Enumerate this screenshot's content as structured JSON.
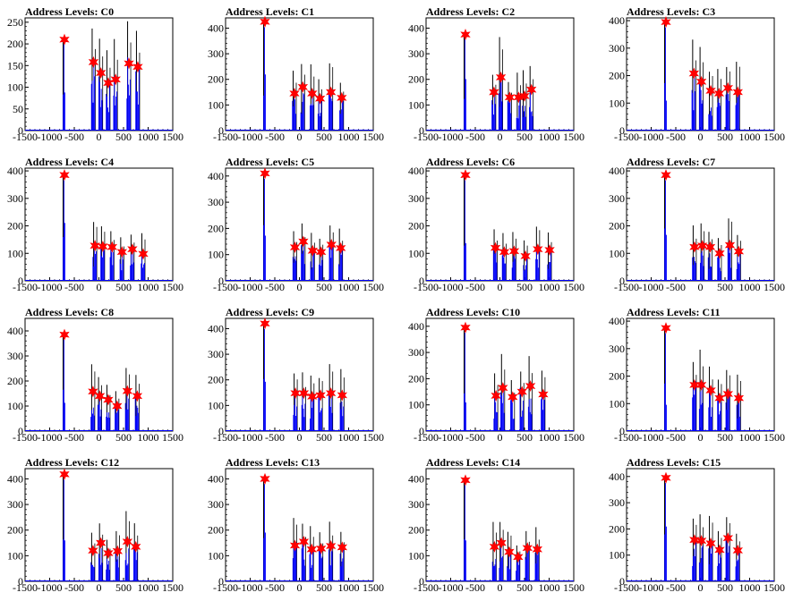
{
  "figure": {
    "x_ticks": [
      -1500,
      -1000,
      -500,
      0,
      500,
      1000,
      1500
    ],
    "xlim": [
      -1500,
      1500
    ],
    "line_color": "#0000ff",
    "spike_color": "#000000",
    "marker_color": "#ff0000"
  },
  "chart_data": [
    {
      "type": "bar",
      "title": "Address Levels: C0",
      "ylim": [
        0,
        260
      ],
      "y_ticks": [
        0,
        50,
        100,
        150,
        200,
        250
      ],
      "peaks": [
        {
          "x": -700,
          "y": 210
        },
        {
          "x": -110,
          "y": 158
        },
        {
          "x": 40,
          "y": 133
        },
        {
          "x": 190,
          "y": 110
        },
        {
          "x": 340,
          "y": 118
        },
        {
          "x": 610,
          "y": 155
        },
        {
          "x": 790,
          "y": 147
        }
      ]
    },
    {
      "type": "bar",
      "title": "Address Levels: C1",
      "ylim": [
        0,
        440
      ],
      "y_ticks": [
        0,
        100,
        200,
        300,
        400
      ],
      "peaks": [
        {
          "x": -700,
          "y": 425
        },
        {
          "x": -100,
          "y": 145
        },
        {
          "x": 70,
          "y": 170
        },
        {
          "x": 260,
          "y": 145
        },
        {
          "x": 420,
          "y": 125
        },
        {
          "x": 640,
          "y": 150
        },
        {
          "x": 860,
          "y": 128
        }
      ]
    },
    {
      "type": "bar",
      "title": "Address Levels: C2",
      "ylim": [
        0,
        440
      ],
      "y_ticks": [
        0,
        100,
        200,
        300,
        400
      ],
      "peaks": [
        {
          "x": -700,
          "y": 375
        },
        {
          "x": -120,
          "y": 150
        },
        {
          "x": 20,
          "y": 208
        },
        {
          "x": 200,
          "y": 130
        },
        {
          "x": 380,
          "y": 130
        },
        {
          "x": 500,
          "y": 135
        },
        {
          "x": 640,
          "y": 160
        }
      ]
    },
    {
      "type": "bar",
      "title": "Address Levels: C3",
      "ylim": [
        0,
        410
      ],
      "y_ticks": [
        0,
        100,
        200,
        300,
        400
      ],
      "peaks": [
        {
          "x": -700,
          "y": 395
        },
        {
          "x": -130,
          "y": 208
        },
        {
          "x": 20,
          "y": 178
        },
        {
          "x": 210,
          "y": 145
        },
        {
          "x": 380,
          "y": 135
        },
        {
          "x": 560,
          "y": 155
        },
        {
          "x": 760,
          "y": 140
        }
      ]
    },
    {
      "type": "bar",
      "title": "Address Levels: C4",
      "ylim": [
        0,
        410
      ],
      "y_ticks": [
        0,
        100,
        200,
        300,
        400
      ],
      "peaks": [
        {
          "x": -700,
          "y": 385
        },
        {
          "x": -80,
          "y": 128
        },
        {
          "x": 80,
          "y": 125
        },
        {
          "x": 270,
          "y": 123
        },
        {
          "x": 470,
          "y": 105
        },
        {
          "x": 680,
          "y": 115
        },
        {
          "x": 900,
          "y": 98
        }
      ]
    },
    {
      "type": "bar",
      "title": "Address Levels: C5",
      "ylim": [
        0,
        430
      ],
      "y_ticks": [
        0,
        100,
        200,
        300,
        400
      ],
      "peaks": [
        {
          "x": -700,
          "y": 410
        },
        {
          "x": -90,
          "y": 128
        },
        {
          "x": 80,
          "y": 150
        },
        {
          "x": 270,
          "y": 115
        },
        {
          "x": 440,
          "y": 110
        },
        {
          "x": 650,
          "y": 138
        },
        {
          "x": 840,
          "y": 125
        }
      ]
    },
    {
      "type": "bar",
      "title": "Address Levels: C6",
      "ylim": [
        0,
        410
      ],
      "y_ticks": [
        0,
        100,
        200,
        300,
        400
      ],
      "peaks": [
        {
          "x": -700,
          "y": 385
        },
        {
          "x": -90,
          "y": 120
        },
        {
          "x": 90,
          "y": 105
        },
        {
          "x": 290,
          "y": 108
        },
        {
          "x": 520,
          "y": 90
        },
        {
          "x": 770,
          "y": 115
        },
        {
          "x": 1010,
          "y": 112
        }
      ]
    },
    {
      "type": "bar",
      "title": "Address Levels: C7",
      "ylim": [
        0,
        410
      ],
      "y_ticks": [
        0,
        100,
        200,
        300,
        400
      ],
      "peaks": [
        {
          "x": -700,
          "y": 385
        },
        {
          "x": -120,
          "y": 123
        },
        {
          "x": 40,
          "y": 128
        },
        {
          "x": 200,
          "y": 123
        },
        {
          "x": 390,
          "y": 100
        },
        {
          "x": 600,
          "y": 130
        },
        {
          "x": 780,
          "y": 107
        }
      ]
    },
    {
      "type": "bar",
      "title": "Address Levels: C8",
      "ylim": [
        0,
        450
      ],
      "y_ticks": [
        0,
        100,
        200,
        300,
        400
      ],
      "peaks": [
        {
          "x": -700,
          "y": 385
        },
        {
          "x": -120,
          "y": 158
        },
        {
          "x": 20,
          "y": 140
        },
        {
          "x": 190,
          "y": 125
        },
        {
          "x": 370,
          "y": 100
        },
        {
          "x": 580,
          "y": 160
        },
        {
          "x": 780,
          "y": 140
        }
      ]
    },
    {
      "type": "bar",
      "title": "Address Levels: C9",
      "ylim": [
        0,
        440
      ],
      "y_ticks": [
        0,
        100,
        200,
        300,
        400
      ],
      "peaks": [
        {
          "x": -700,
          "y": 420
        },
        {
          "x": -80,
          "y": 148
        },
        {
          "x": 90,
          "y": 148
        },
        {
          "x": 260,
          "y": 135
        },
        {
          "x": 430,
          "y": 140
        },
        {
          "x": 640,
          "y": 148
        },
        {
          "x": 870,
          "y": 140
        }
      ]
    },
    {
      "type": "bar",
      "title": "Address Levels: C10",
      "ylim": [
        0,
        430
      ],
      "y_ticks": [
        0,
        100,
        200,
        300,
        400
      ],
      "peaks": [
        {
          "x": -700,
          "y": 395
        },
        {
          "x": -80,
          "y": 135
        },
        {
          "x": 60,
          "y": 165
        },
        {
          "x": 260,
          "y": 130
        },
        {
          "x": 450,
          "y": 150
        },
        {
          "x": 620,
          "y": 172
        },
        {
          "x": 880,
          "y": 140
        }
      ]
    },
    {
      "type": "bar",
      "title": "Address Levels: C11",
      "ylim": [
        0,
        410
      ],
      "y_ticks": [
        0,
        100,
        200,
        300,
        400
      ],
      "peaks": [
        {
          "x": -700,
          "y": 375
        },
        {
          "x": -120,
          "y": 168
        },
        {
          "x": 20,
          "y": 168
        },
        {
          "x": 210,
          "y": 148
        },
        {
          "x": 390,
          "y": 120
        },
        {
          "x": 560,
          "y": 135
        },
        {
          "x": 780,
          "y": 120
        }
      ]
    },
    {
      "type": "bar",
      "title": "Address Levels: C12",
      "ylim": [
        0,
        440
      ],
      "y_ticks": [
        0,
        100,
        200,
        300,
        400
      ],
      "peaks": [
        {
          "x": -700,
          "y": 418
        },
        {
          "x": -120,
          "y": 120
        },
        {
          "x": 40,
          "y": 150
        },
        {
          "x": 190,
          "y": 110
        },
        {
          "x": 380,
          "y": 118
        },
        {
          "x": 580,
          "y": 155
        },
        {
          "x": 750,
          "y": 135
        }
      ]
    },
    {
      "type": "bar",
      "title": "Address Levels: C13",
      "ylim": [
        0,
        440
      ],
      "y_ticks": [
        0,
        100,
        200,
        300,
        400
      ],
      "peaks": [
        {
          "x": -700,
          "y": 400
        },
        {
          "x": -90,
          "y": 140
        },
        {
          "x": 90,
          "y": 155
        },
        {
          "x": 250,
          "y": 125
        },
        {
          "x": 440,
          "y": 128
        },
        {
          "x": 640,
          "y": 138
        },
        {
          "x": 870,
          "y": 133
        }
      ]
    },
    {
      "type": "bar",
      "title": "Address Levels: C14",
      "ylim": [
        0,
        440
      ],
      "y_ticks": [
        0,
        100,
        200,
        300,
        400
      ],
      "peaks": [
        {
          "x": -700,
          "y": 395
        },
        {
          "x": -110,
          "y": 135
        },
        {
          "x": 30,
          "y": 150
        },
        {
          "x": 190,
          "y": 115
        },
        {
          "x": 370,
          "y": 95
        },
        {
          "x": 560,
          "y": 130
        },
        {
          "x": 760,
          "y": 125
        }
      ]
    },
    {
      "type": "bar",
      "title": "Address Levels: C15",
      "ylim": [
        0,
        430
      ],
      "y_ticks": [
        0,
        100,
        200,
        300,
        400
      ],
      "peaks": [
        {
          "x": -700,
          "y": 395
        },
        {
          "x": -120,
          "y": 158
        },
        {
          "x": 20,
          "y": 155
        },
        {
          "x": 210,
          "y": 145
        },
        {
          "x": 390,
          "y": 120
        },
        {
          "x": 560,
          "y": 165
        },
        {
          "x": 760,
          "y": 118
        }
      ]
    }
  ]
}
